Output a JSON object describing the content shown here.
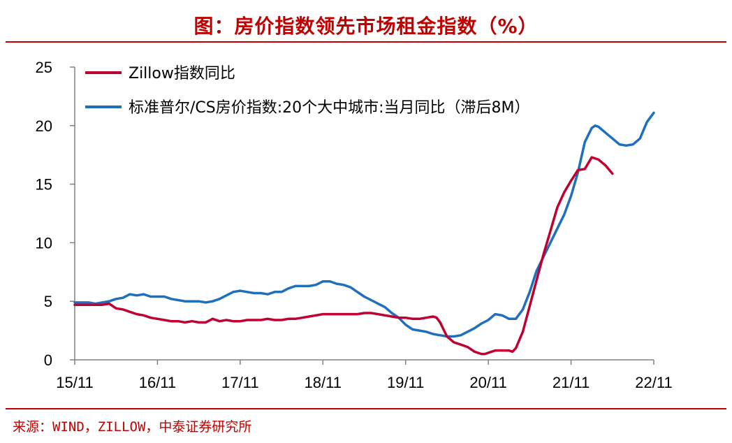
{
  "header": {
    "title": "图：房价指数领先市场租金指数（%）"
  },
  "footer": {
    "source": "来源：WIND，ZILLOW，中泰证券研究所"
  },
  "chart_data": {
    "type": "line",
    "title": "图：房价指数领先市场租金指数（%）",
    "xlabel": "",
    "ylabel": "",
    "ylim": [
      0,
      25
    ],
    "xlim": [
      0,
      84
    ],
    "yticks": [
      0,
      5,
      10,
      15,
      20,
      25
    ],
    "xticks": [
      {
        "label": "15/11",
        "x": 0
      },
      {
        "label": "16/11",
        "x": 12
      },
      {
        "label": "17/11",
        "x": 24
      },
      {
        "label": "18/11",
        "x": 36
      },
      {
        "label": "19/11",
        "x": 48
      },
      {
        "label": "20/11",
        "x": 60
      },
      {
        "label": "21/11",
        "x": 72
      },
      {
        "label": "22/11",
        "x": 84
      }
    ],
    "grid": false,
    "legend_position": "top-left",
    "series": [
      {
        "name": "Zillow指数同比",
        "color": "#c00030",
        "points": [
          [
            0,
            4.7
          ],
          [
            2,
            4.7
          ],
          [
            4,
            4.7
          ],
          [
            5,
            4.8
          ],
          [
            6,
            4.4
          ],
          [
            7,
            4.3
          ],
          [
            8,
            4.1
          ],
          [
            9,
            3.9
          ],
          [
            10,
            3.8
          ],
          [
            11,
            3.6
          ],
          [
            12,
            3.5
          ],
          [
            13,
            3.4
          ],
          [
            14,
            3.3
          ],
          [
            15,
            3.3
          ],
          [
            16,
            3.2
          ],
          [
            17,
            3.3
          ],
          [
            18,
            3.2
          ],
          [
            19,
            3.2
          ],
          [
            20,
            3.5
          ],
          [
            21,
            3.3
          ],
          [
            22,
            3.4
          ],
          [
            23,
            3.3
          ],
          [
            24,
            3.3
          ],
          [
            25,
            3.4
          ],
          [
            26,
            3.4
          ],
          [
            27,
            3.4
          ],
          [
            28,
            3.5
          ],
          [
            29,
            3.4
          ],
          [
            30,
            3.4
          ],
          [
            31,
            3.5
          ],
          [
            32,
            3.5
          ],
          [
            33,
            3.6
          ],
          [
            34,
            3.7
          ],
          [
            35,
            3.8
          ],
          [
            36,
            3.9
          ],
          [
            37,
            3.9
          ],
          [
            38,
            3.9
          ],
          [
            39,
            3.9
          ],
          [
            40,
            3.9
          ],
          [
            41,
            3.9
          ],
          [
            42,
            4.0
          ],
          [
            43,
            4.0
          ],
          [
            44,
            3.9
          ],
          [
            45,
            3.8
          ],
          [
            46,
            3.7
          ],
          [
            47,
            3.6
          ],
          [
            48,
            3.6
          ],
          [
            49,
            3.5
          ],
          [
            50,
            3.5
          ],
          [
            51,
            3.6
          ],
          [
            52,
            3.7
          ],
          [
            52.5,
            3.6
          ],
          [
            53,
            3.2
          ],
          [
            54,
            2.0
          ],
          [
            55,
            1.5
          ],
          [
            56,
            1.3
          ],
          [
            57,
            1.1
          ],
          [
            58,
            0.7
          ],
          [
            59,
            0.5
          ],
          [
            59.5,
            0.5
          ],
          [
            60,
            0.6
          ],
          [
            61,
            0.8
          ],
          [
            62,
            0.8
          ],
          [
            63,
            0.8
          ],
          [
            63.5,
            0.7
          ],
          [
            64,
            1.0
          ],
          [
            65,
            2.4
          ],
          [
            66,
            4.6
          ],
          [
            67,
            6.8
          ],
          [
            68,
            9.0
          ],
          [
            69,
            11.0
          ],
          [
            70,
            13.0
          ],
          [
            71,
            14.3
          ],
          [
            72,
            15.3
          ],
          [
            73,
            16.2
          ],
          [
            74,
            16.3
          ],
          [
            75,
            17.3
          ],
          [
            76,
            17.1
          ],
          [
            77,
            16.6
          ],
          [
            78,
            15.9
          ]
        ]
      },
      {
        "name": "标准普尔/CS房价指数:20个大中城市:当月同比（滞后8M）",
        "color": "#1f6fbf",
        "points": [
          [
            0,
            4.9
          ],
          [
            1,
            4.9
          ],
          [
            2,
            4.9
          ],
          [
            3,
            4.8
          ],
          [
            4,
            4.9
          ],
          [
            5,
            5.0
          ],
          [
            6,
            5.2
          ],
          [
            7,
            5.3
          ],
          [
            8,
            5.6
          ],
          [
            9,
            5.5
          ],
          [
            10,
            5.6
          ],
          [
            11,
            5.4
          ],
          [
            12,
            5.4
          ],
          [
            13,
            5.4
          ],
          [
            14,
            5.2
          ],
          [
            15,
            5.1
          ],
          [
            16,
            5.0
          ],
          [
            17,
            5.0
          ],
          [
            18,
            5.0
          ],
          [
            19,
            4.9
          ],
          [
            20,
            5.0
          ],
          [
            21,
            5.2
          ],
          [
            22,
            5.5
          ],
          [
            23,
            5.8
          ],
          [
            24,
            5.9
          ],
          [
            25,
            5.8
          ],
          [
            26,
            5.7
          ],
          [
            27,
            5.7
          ],
          [
            28,
            5.6
          ],
          [
            29,
            5.8
          ],
          [
            30,
            5.8
          ],
          [
            31,
            6.1
          ],
          [
            32,
            6.3
          ],
          [
            33,
            6.3
          ],
          [
            34,
            6.3
          ],
          [
            35,
            6.4
          ],
          [
            36,
            6.7
          ],
          [
            37,
            6.7
          ],
          [
            38,
            6.5
          ],
          [
            39,
            6.4
          ],
          [
            40,
            6.2
          ],
          [
            41,
            5.8
          ],
          [
            42,
            5.4
          ],
          [
            43,
            5.1
          ],
          [
            44,
            4.8
          ],
          [
            45,
            4.5
          ],
          [
            46,
            4.0
          ],
          [
            47,
            3.6
          ],
          [
            48,
            3.0
          ],
          [
            49,
            2.6
          ],
          [
            50,
            2.5
          ],
          [
            51,
            2.4
          ],
          [
            52,
            2.2
          ],
          [
            53,
            2.1
          ],
          [
            54,
            2.0
          ],
          [
            55,
            2.0
          ],
          [
            56,
            2.1
          ],
          [
            57,
            2.4
          ],
          [
            58,
            2.7
          ],
          [
            59,
            3.1
          ],
          [
            60,
            3.4
          ],
          [
            61,
            3.9
          ],
          [
            62,
            3.8
          ],
          [
            63,
            3.5
          ],
          [
            64,
            3.5
          ],
          [
            65,
            4.3
          ],
          [
            66,
            5.8
          ],
          [
            67,
            7.6
          ],
          [
            68,
            8.8
          ],
          [
            69,
            10.0
          ],
          [
            70,
            11.2
          ],
          [
            71,
            12.4
          ],
          [
            72,
            14.0
          ],
          [
            73,
            16.0
          ],
          [
            74,
            18.6
          ],
          [
            75,
            19.8
          ],
          [
            75.5,
            20.0
          ],
          [
            76,
            19.9
          ],
          [
            77,
            19.4
          ],
          [
            78,
            18.9
          ],
          [
            79,
            18.4
          ],
          [
            80,
            18.3
          ],
          [
            81,
            18.4
          ],
          [
            82,
            18.9
          ],
          [
            83,
            20.3
          ],
          [
            84,
            21.1
          ]
        ]
      }
    ]
  }
}
